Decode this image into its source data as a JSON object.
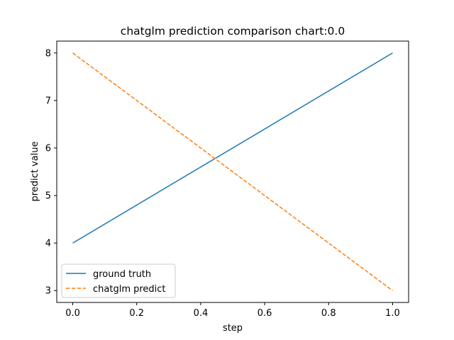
{
  "chart_data": {
    "type": "line",
    "title": "chatglm prediction comparison chart:0.0",
    "xlabel": "step",
    "ylabel": "predict value",
    "xlim": [
      -0.05,
      1.05
    ],
    "ylim": [
      2.75,
      8.25
    ],
    "xticks": [
      0.0,
      0.2,
      0.4,
      0.6,
      0.8,
      1.0
    ],
    "xtick_labels": [
      "0.0",
      "0.2",
      "0.4",
      "0.6",
      "0.8",
      "1.0"
    ],
    "yticks": [
      3,
      4,
      5,
      6,
      7,
      8
    ],
    "ytick_labels": [
      "3",
      "4",
      "5",
      "6",
      "7",
      "8"
    ],
    "grid": false,
    "legend_position": "lower-left",
    "series": [
      {
        "name": "ground truth",
        "x": [
          0.0,
          1.0
        ],
        "values": [
          4,
          8
        ],
        "color": "#1f77b4",
        "style": "solid"
      },
      {
        "name": "chatglm predict",
        "x": [
          0.0,
          1.0
        ],
        "values": [
          8,
          3
        ],
        "color": "#ff7f0e",
        "style": "dashed"
      }
    ]
  }
}
